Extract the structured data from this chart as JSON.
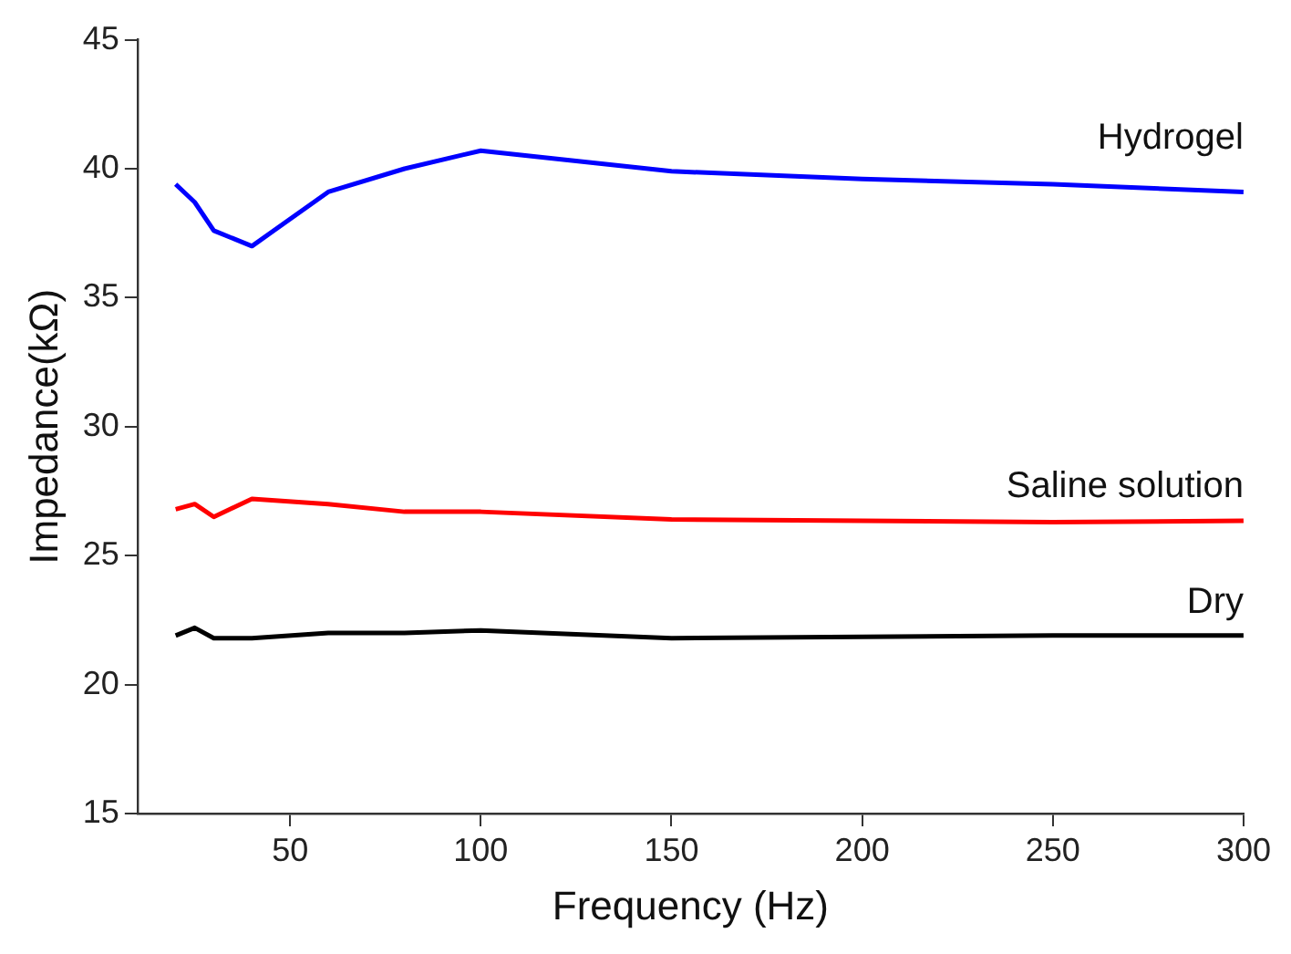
{
  "chart_data": {
    "type": "line",
    "xlabel": "Frequency (Hz)",
    "ylabel": "Impedance(kΩ)",
    "x": [
      20,
      25,
      30,
      40,
      60,
      80,
      100,
      150,
      200,
      250,
      300
    ],
    "xlim": [
      10,
      300
    ],
    "xticks": [
      50,
      100,
      150,
      200,
      250,
      300
    ],
    "ylim": [
      15,
      45
    ],
    "yticks": [
      15,
      20,
      25,
      30,
      35,
      40,
      45
    ],
    "grid": false,
    "legend": false,
    "marker": "none",
    "line_style": "solid",
    "series": [
      {
        "name": "Hydrogel",
        "color": "#0000ff",
        "values": [
          39.4,
          38.7,
          37.6,
          37.0,
          39.1,
          40.0,
          40.7,
          39.9,
          39.6,
          39.4,
          39.1
        ]
      },
      {
        "name": "Saline solution",
        "color": "#ff0000",
        "values": [
          26.8,
          27.0,
          26.5,
          27.2,
          27.0,
          26.7,
          26.7,
          26.4,
          26.35,
          26.3,
          26.35
        ]
      },
      {
        "name": "Dry",
        "color": "#000000",
        "values": [
          21.9,
          22.2,
          21.8,
          21.8,
          22.0,
          22.0,
          22.1,
          21.8,
          21.85,
          21.9,
          21.9
        ]
      }
    ]
  }
}
